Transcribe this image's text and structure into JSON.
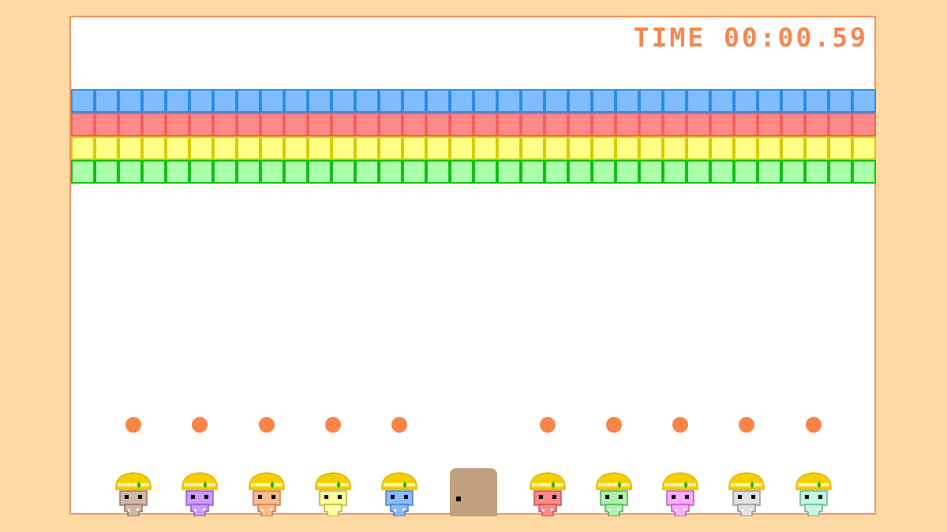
{
  "hud": {
    "timer": "TIME 00:00.59"
  },
  "bricks": {
    "columns": 34,
    "rows": [
      {
        "name": "blue",
        "fill": "#80bcff",
        "border": "#2a8de6"
      },
      {
        "name": "red",
        "fill": "#ff8a8a",
        "border": "#f26060"
      },
      {
        "name": "yellow",
        "fill": "#ffff88",
        "border": "#d4cc00"
      },
      {
        "name": "green",
        "fill": "#aaffaa",
        "border": "#10c010"
      }
    ]
  },
  "ball_color": "#f88448",
  "helmet": {
    "fill": "#f5d000",
    "outline": "#e0b400",
    "stripe": "#fff2b8",
    "gem": "#20b020"
  },
  "characters": [
    {
      "color": "#d2b8a0",
      "outline": "#8c7460",
      "ball": true
    },
    {
      "color": "#cc99ff",
      "outline": "#8a5cc0",
      "ball": true
    },
    {
      "color": "#ffb888",
      "outline": "#c07850",
      "ball": true
    },
    {
      "color": "#ffff99",
      "outline": "#b0b050",
      "ball": true
    },
    {
      "color": "#88bbff",
      "outline": "#4a7cc0",
      "ball": true
    },
    {
      "door": true,
      "color": "#c0a07e"
    },
    {
      "color": "#ff8888",
      "outline": "#c05050",
      "ball": true
    },
    {
      "color": "#aaf5aa",
      "outline": "#60a060",
      "ball": true
    },
    {
      "color": "#ffaaff",
      "outline": "#b060b0",
      "ball": true
    },
    {
      "color": "#e0e0e0",
      "outline": "#909090",
      "ball": true
    },
    {
      "color": "#c0f8e0",
      "outline": "#70a890",
      "ball": true
    }
  ]
}
